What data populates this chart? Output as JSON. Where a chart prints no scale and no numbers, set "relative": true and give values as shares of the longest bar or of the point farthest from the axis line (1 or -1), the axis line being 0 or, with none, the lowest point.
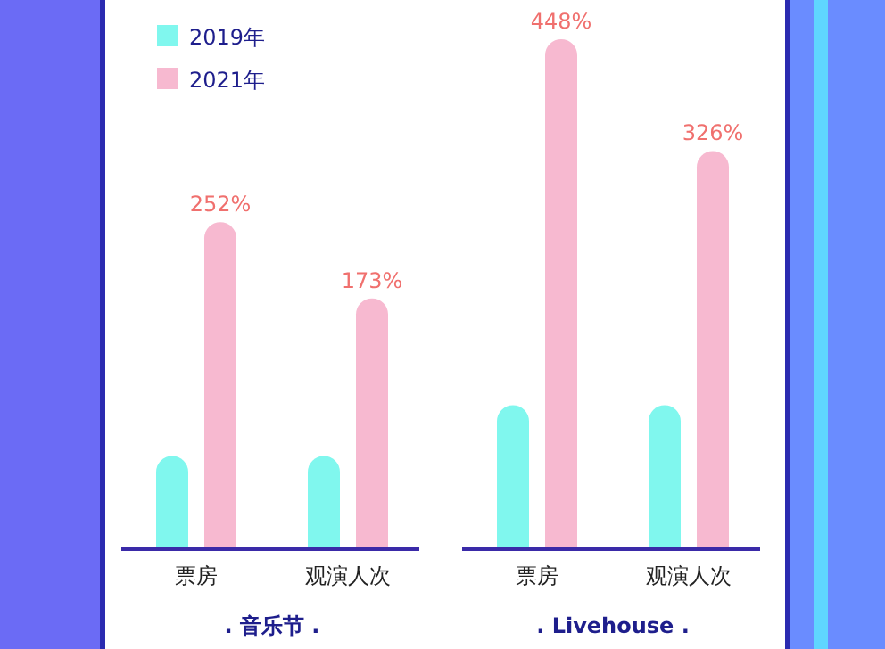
{
  "chart_data": {
    "type": "bar",
    "relative": true,
    "categories": [
      "票房",
      "观演人次",
      "票房",
      "观演人次"
    ],
    "series": [
      {
        "name": "2019年",
        "color": "#80f7ee",
        "values": [
          0.18,
          0.18,
          0.28,
          0.28
        ]
      },
      {
        "name": "2021年",
        "color": "#f7b9d0",
        "values": [
          0.64,
          0.49,
          1,
          0.78
        ]
      }
    ],
    "annotations": [
      ". 音乐节 .",
      ". Livehouse .",
      "252%",
      "173%",
      "448%",
      "326%"
    ],
    "legend": "top left",
    "grid": false
  }
}
